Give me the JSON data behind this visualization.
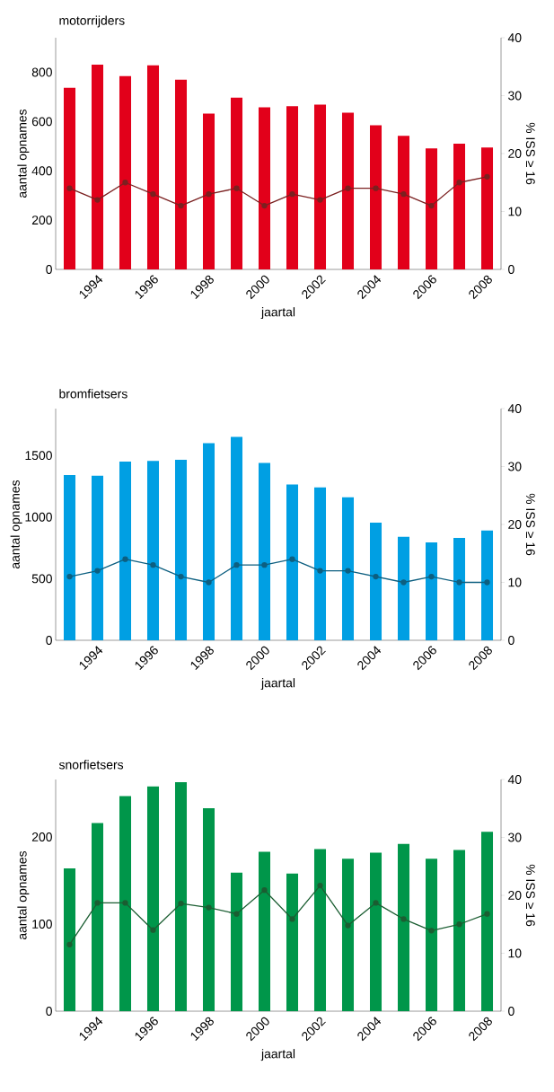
{
  "chart_data": [
    {
      "type": "bar",
      "title": "motorrijders",
      "xlabel": "jaartal",
      "ylabel": "aantal opnames",
      "y2label": "% ISS ≥ 16",
      "marker": "circle",
      "categories": [
        null,
        "1994",
        null,
        "1996",
        null,
        "1998",
        null,
        "2000",
        null,
        "2002",
        null,
        "2004",
        null,
        "2006",
        null,
        "2008"
      ],
      "series": [
        {
          "color": "#e2001a",
          "values": [
            737,
            831,
            784,
            828,
            770,
            632,
            697,
            658,
            662,
            669,
            636,
            585,
            542,
            491,
            510,
            495
          ]
        },
        {
          "type": "line",
          "axis": "y2",
          "color": "#7b2020",
          "values": [
            14,
            12,
            15,
            13,
            11,
            13,
            14,
            11,
            13,
            12,
            14,
            14,
            13,
            11,
            15,
            16
          ]
        }
      ],
      "ylim": [
        0,
        940
      ],
      "yticks": [
        0,
        200,
        400,
        600,
        800
      ],
      "y2lim": [
        0,
        40
      ],
      "y2ticks": [
        0,
        10,
        20,
        30,
        40
      ]
    },
    {
      "type": "bar",
      "title": "bromfietsers",
      "xlabel": "jaartal",
      "ylabel": "aantal opnames",
      "y2label": "% ISS ≥ 16",
      "marker": "circle",
      "categories": [
        null,
        "1994",
        null,
        "1996",
        null,
        "1998",
        null,
        "2000",
        null,
        "2002",
        null,
        "2004",
        null,
        "2006",
        null,
        "2008"
      ],
      "series": [
        {
          "color": "#009fe3",
          "values": [
            1340,
            1335,
            1450,
            1455,
            1465,
            1600,
            1650,
            1440,
            1265,
            1240,
            1160,
            955,
            840,
            795,
            830,
            890
          ]
        },
        {
          "type": "line",
          "axis": "y2",
          "color": "#0d5f80",
          "values": [
            11,
            12,
            14,
            13,
            11,
            10,
            13,
            13,
            14,
            12,
            12,
            11,
            10,
            11,
            10,
            10
          ]
        }
      ],
      "ylim": [
        0,
        1880
      ],
      "yticks": [
        0,
        500,
        1000,
        1500
      ],
      "y2lim": [
        0,
        40
      ],
      "y2ticks": [
        0,
        10,
        20,
        30,
        40
      ]
    },
    {
      "type": "bar",
      "title": "snorfietsers",
      "xlabel": "jaartal",
      "ylabel": "aantal opnames",
      "y2label": "% ISS ≥ 16",
      "marker": "circle",
      "categories": [
        null,
        "1994",
        null,
        "1996",
        null,
        "1998",
        null,
        "2000",
        null,
        "2002",
        null,
        "2004",
        null,
        "2006",
        null,
        "2008"
      ],
      "series": [
        {
          "color": "#00964a",
          "values": [
            164,
            216,
            247,
            258,
            263,
            233,
            159,
            183,
            158,
            186,
            175,
            182,
            192,
            175,
            185,
            206
          ]
        },
        {
          "type": "line",
          "axis": "y2",
          "color": "#1b5e32",
          "values": [
            11.5,
            18.7,
            18.7,
            14,
            18.6,
            17.9,
            16.8,
            20.9,
            15.9,
            21.7,
            14.8,
            18.7,
            15.9,
            13.9,
            15,
            16.8
          ]
        }
      ],
      "ylim": [
        0,
        266
      ],
      "yticks": [
        0,
        100,
        200
      ],
      "y2lim": [
        0,
        40
      ],
      "y2ticks": [
        0,
        10,
        20,
        30,
        40
      ]
    }
  ]
}
